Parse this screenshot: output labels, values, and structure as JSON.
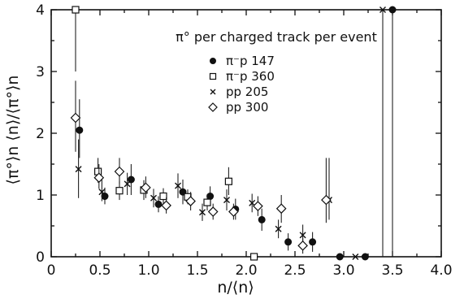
{
  "chart_data": {
    "type": "scatter",
    "title": "π° per charged track per event",
    "xlabel": "n/⟨n⟩",
    "ylabel": "⟨π°⟩n ⟨n⟩/⟨π°⟩n",
    "xlim": [
      0,
      4.0
    ],
    "ylim": [
      0,
      4
    ],
    "x_ticks": [
      "0",
      "0.5",
      "1.0",
      "1.5",
      "2.0",
      "2.5",
      "3.0",
      "3.5",
      "4.0"
    ],
    "y_ticks": [
      "0",
      "1",
      "2",
      "3",
      "4"
    ],
    "grid": false,
    "legend_position": "top-center",
    "series": [
      {
        "name": "π⁻p 147",
        "marker": "filled-circle",
        "points": [
          {
            "x": 0.29,
            "y": 2.05,
            "lo": 1.6,
            "hi": 2.55
          },
          {
            "x": 0.55,
            "y": 0.98,
            "lo": 0.85,
            "hi": 1.12
          },
          {
            "x": 0.82,
            "y": 1.25,
            "lo": 1.0,
            "hi": 1.5
          },
          {
            "x": 1.1,
            "y": 0.85,
            "lo": 0.72,
            "hi": 0.98
          },
          {
            "x": 1.35,
            "y": 1.05,
            "lo": 0.85,
            "hi": 1.25
          },
          {
            "x": 1.63,
            "y": 0.98,
            "lo": 0.82,
            "hi": 1.14
          },
          {
            "x": 1.89,
            "y": 0.77,
            "lo": 0.6,
            "hi": 0.94
          },
          {
            "x": 2.16,
            "y": 0.6,
            "lo": 0.42,
            "hi": 0.78
          },
          {
            "x": 2.43,
            "y": 0.24,
            "lo": 0.1,
            "hi": 0.38
          },
          {
            "x": 2.68,
            "y": 0.24,
            "lo": 0.08,
            "hi": 0.4
          },
          {
            "x": 2.96,
            "y": 0.0,
            "lo": 0.0,
            "hi": 0.0
          },
          {
            "x": 3.22,
            "y": 0.0,
            "lo": 0.0,
            "hi": 0.0
          },
          {
            "x": 3.5,
            "y": 4.0,
            "lo": 0.0,
            "hi": 4.0
          }
        ]
      },
      {
        "name": "π⁻p 360",
        "marker": "open-square",
        "points": [
          {
            "x": 0.25,
            "y": 4.0,
            "lo": 3.0,
            "hi": 4.0
          },
          {
            "x": 0.48,
            "y": 1.38,
            "lo": 1.2,
            "hi": 1.6
          },
          {
            "x": 0.7,
            "y": 1.07,
            "lo": 0.92,
            "hi": 1.22
          },
          {
            "x": 0.95,
            "y": 1.08,
            "lo": 0.92,
            "hi": 1.24
          },
          {
            "x": 1.15,
            "y": 0.98,
            "lo": 0.85,
            "hi": 1.11
          },
          {
            "x": 1.4,
            "y": 0.97,
            "lo": 0.85,
            "hi": 1.09
          },
          {
            "x": 1.6,
            "y": 0.88,
            "lo": 0.75,
            "hi": 1.01
          },
          {
            "x": 1.82,
            "y": 1.22,
            "lo": 1.0,
            "hi": 1.45
          },
          {
            "x": 2.08,
            "y": 0.0,
            "lo": 0.0,
            "hi": 0.0
          }
        ]
      },
      {
        "name": "pp 205",
        "marker": "x",
        "points": [
          {
            "x": 0.28,
            "y": 1.42,
            "lo": 0.95,
            "hi": 1.9
          },
          {
            "x": 0.52,
            "y": 1.05,
            "lo": 0.9,
            "hi": 1.25
          },
          {
            "x": 0.78,
            "y": 1.18,
            "lo": 1.0,
            "hi": 1.36
          },
          {
            "x": 1.05,
            "y": 0.95,
            "lo": 0.8,
            "hi": 1.1
          },
          {
            "x": 1.3,
            "y": 1.15,
            "lo": 0.95,
            "hi": 1.35
          },
          {
            "x": 1.55,
            "y": 0.72,
            "lo": 0.58,
            "hi": 0.86
          },
          {
            "x": 1.8,
            "y": 0.92,
            "lo": 0.75,
            "hi": 1.09
          },
          {
            "x": 2.06,
            "y": 0.87,
            "lo": 0.72,
            "hi": 1.02
          },
          {
            "x": 2.33,
            "y": 0.45,
            "lo": 0.3,
            "hi": 0.6
          },
          {
            "x": 2.58,
            "y": 0.35,
            "lo": 0.18,
            "hi": 0.52
          },
          {
            "x": 2.85,
            "y": 0.92,
            "lo": 0.6,
            "hi": 1.6
          },
          {
            "x": 3.12,
            "y": 0.0,
            "lo": 0.0,
            "hi": 0.0
          },
          {
            "x": 3.4,
            "y": 4.0,
            "lo": 0.0,
            "hi": 4.0
          }
        ]
      },
      {
        "name": "pp 300",
        "marker": "open-diamond",
        "points": [
          {
            "x": 0.25,
            "y": 2.25,
            "lo": 1.7,
            "hi": 2.85
          },
          {
            "x": 0.49,
            "y": 1.28,
            "lo": 1.1,
            "hi": 1.5
          },
          {
            "x": 0.7,
            "y": 1.38,
            "lo": 1.18,
            "hi": 1.6
          },
          {
            "x": 0.97,
            "y": 1.12,
            "lo": 0.95,
            "hi": 1.3
          },
          {
            "x": 1.18,
            "y": 0.83,
            "lo": 0.7,
            "hi": 0.96
          },
          {
            "x": 1.43,
            "y": 0.9,
            "lo": 0.75,
            "hi": 1.05
          },
          {
            "x": 1.66,
            "y": 0.73,
            "lo": 0.6,
            "hi": 0.86
          },
          {
            "x": 1.87,
            "y": 0.73,
            "lo": 0.6,
            "hi": 0.86
          },
          {
            "x": 2.12,
            "y": 0.82,
            "lo": 0.66,
            "hi": 0.98
          },
          {
            "x": 2.36,
            "y": 0.78,
            "lo": 0.55,
            "hi": 1.0
          },
          {
            "x": 2.58,
            "y": 0.18,
            "lo": 0.05,
            "hi": 0.3
          },
          {
            "x": 2.82,
            "y": 0.92,
            "lo": 0.55,
            "hi": 1.6
          }
        ]
      }
    ]
  }
}
